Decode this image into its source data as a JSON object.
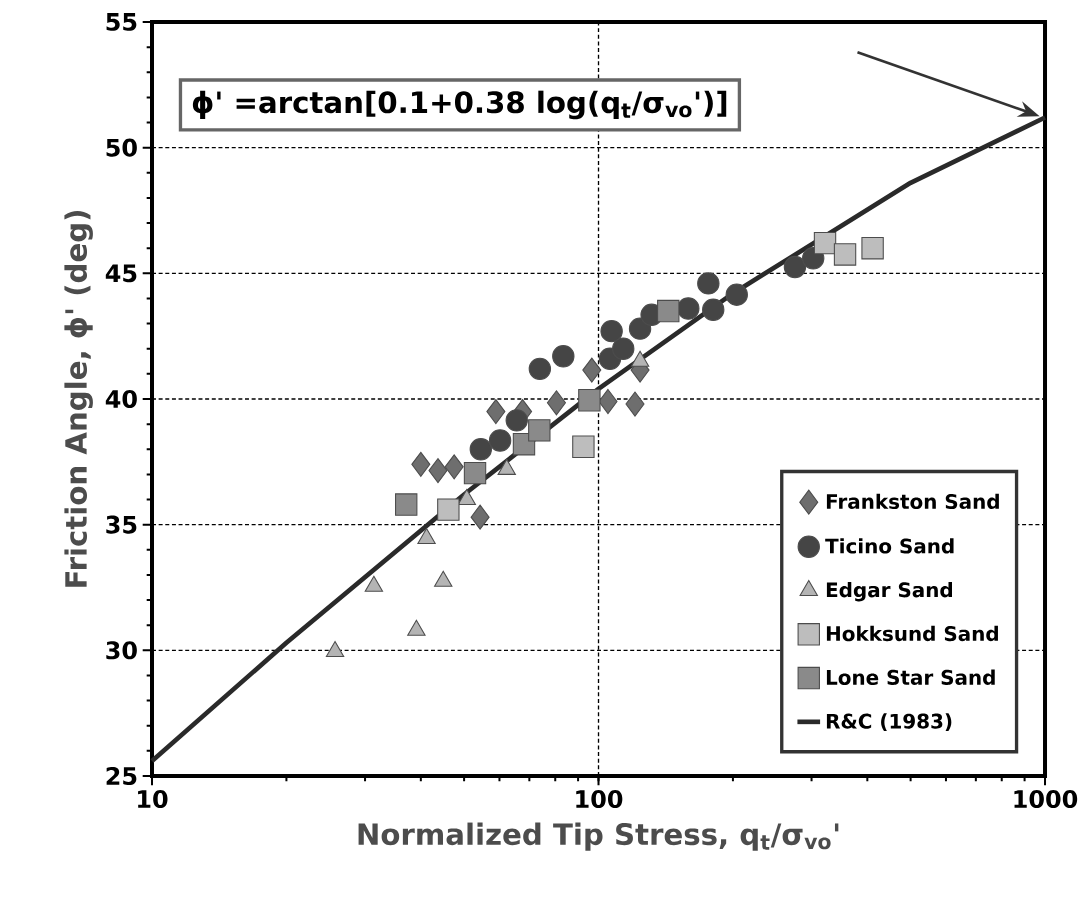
{
  "chart_data": {
    "type": "scatter",
    "xlabel": "Normalized Tip Stress, q$_{t}$/σ$_{vo}$'",
    "ylabel": "Friction Angle, ϕ' (deg)",
    "annotations": [
      "ϕ' =arctan[0.1+0.38 log(q$_{t}$/σ$_{vo}$')]"
    ],
    "log": "x",
    "xlim": [
      10,
      1000
    ],
    "xticks": [
      10,
      100,
      1000
    ],
    "ylim": [
      25,
      55
    ],
    "yticks": [
      25,
      30,
      35,
      40,
      45,
      50,
      55
    ],
    "grid": true,
    "legend": "bottom right",
    "series": [
      {
        "name": "Frankston Sand",
        "marker": "diamond",
        "color": "#6e6e6e",
        "x": [
          40.0,
          43.7,
          47.5,
          54.3,
          58.9,
          67.6,
          80.5,
          96.6,
          105,
          120.7,
          123.9
        ],
        "values": [
          37.4,
          37.15,
          37.3,
          35.3,
          39.5,
          39.5,
          39.85,
          41.15,
          39.9,
          39.8,
          41.15
        ]
      },
      {
        "name": "Ticino Sand",
        "marker": "circle",
        "color": "#454545",
        "x": [
          54.5,
          60.2,
          65.6,
          73.9,
          83.4,
          107,
          106.1,
          113.6,
          123.9,
          131.5,
          158.9,
          176.2,
          180.7,
          204,
          275.4,
          302.6
        ],
        "values": [
          38.0,
          38.35,
          39.15,
          41.2,
          41.7,
          42.7,
          41.6,
          42.0,
          42.8,
          43.35,
          43.6,
          44.6,
          43.55,
          44.15,
          45.25,
          45.6
        ]
      },
      {
        "name": "Edgar Sand",
        "marker": "triangle",
        "color": "#b4b4b4",
        "x": [
          25.7,
          31.4,
          39.1,
          41.2,
          44.9,
          50.7,
          62.3,
          123.9
        ],
        "values": [
          29.95,
          32.55,
          30.8,
          34.45,
          32.75,
          36.0,
          37.2,
          41.5
        ]
      },
      {
        "name": "Hokksund Sand",
        "marker": "square",
        "color": "#bdbdbd",
        "x": [
          46.1,
          92.5,
          321.6,
          356.6,
          411
        ],
        "values": [
          35.6,
          38.1,
          46.2,
          45.75,
          46.0
        ]
      },
      {
        "name": "Lone Star Sand",
        "marker": "square",
        "color": "#8a8a8a",
        "x": [
          37.1,
          52.9,
          68.1,
          73.7,
          95.4,
          143.3
        ],
        "values": [
          35.8,
          37.05,
          38.2,
          38.75,
          39.95,
          43.5
        ]
      },
      {
        "name": "R&C (1983)",
        "type": "line",
        "line_style": "solid",
        "color": "#2a2a2a",
        "x": [
          10,
          20,
          50,
          100,
          200,
          500,
          1000
        ],
        "values": [
          25.6,
          30.3,
          36.2,
          40.4,
          44.2,
          48.6,
          51.2
        ]
      }
    ]
  }
}
